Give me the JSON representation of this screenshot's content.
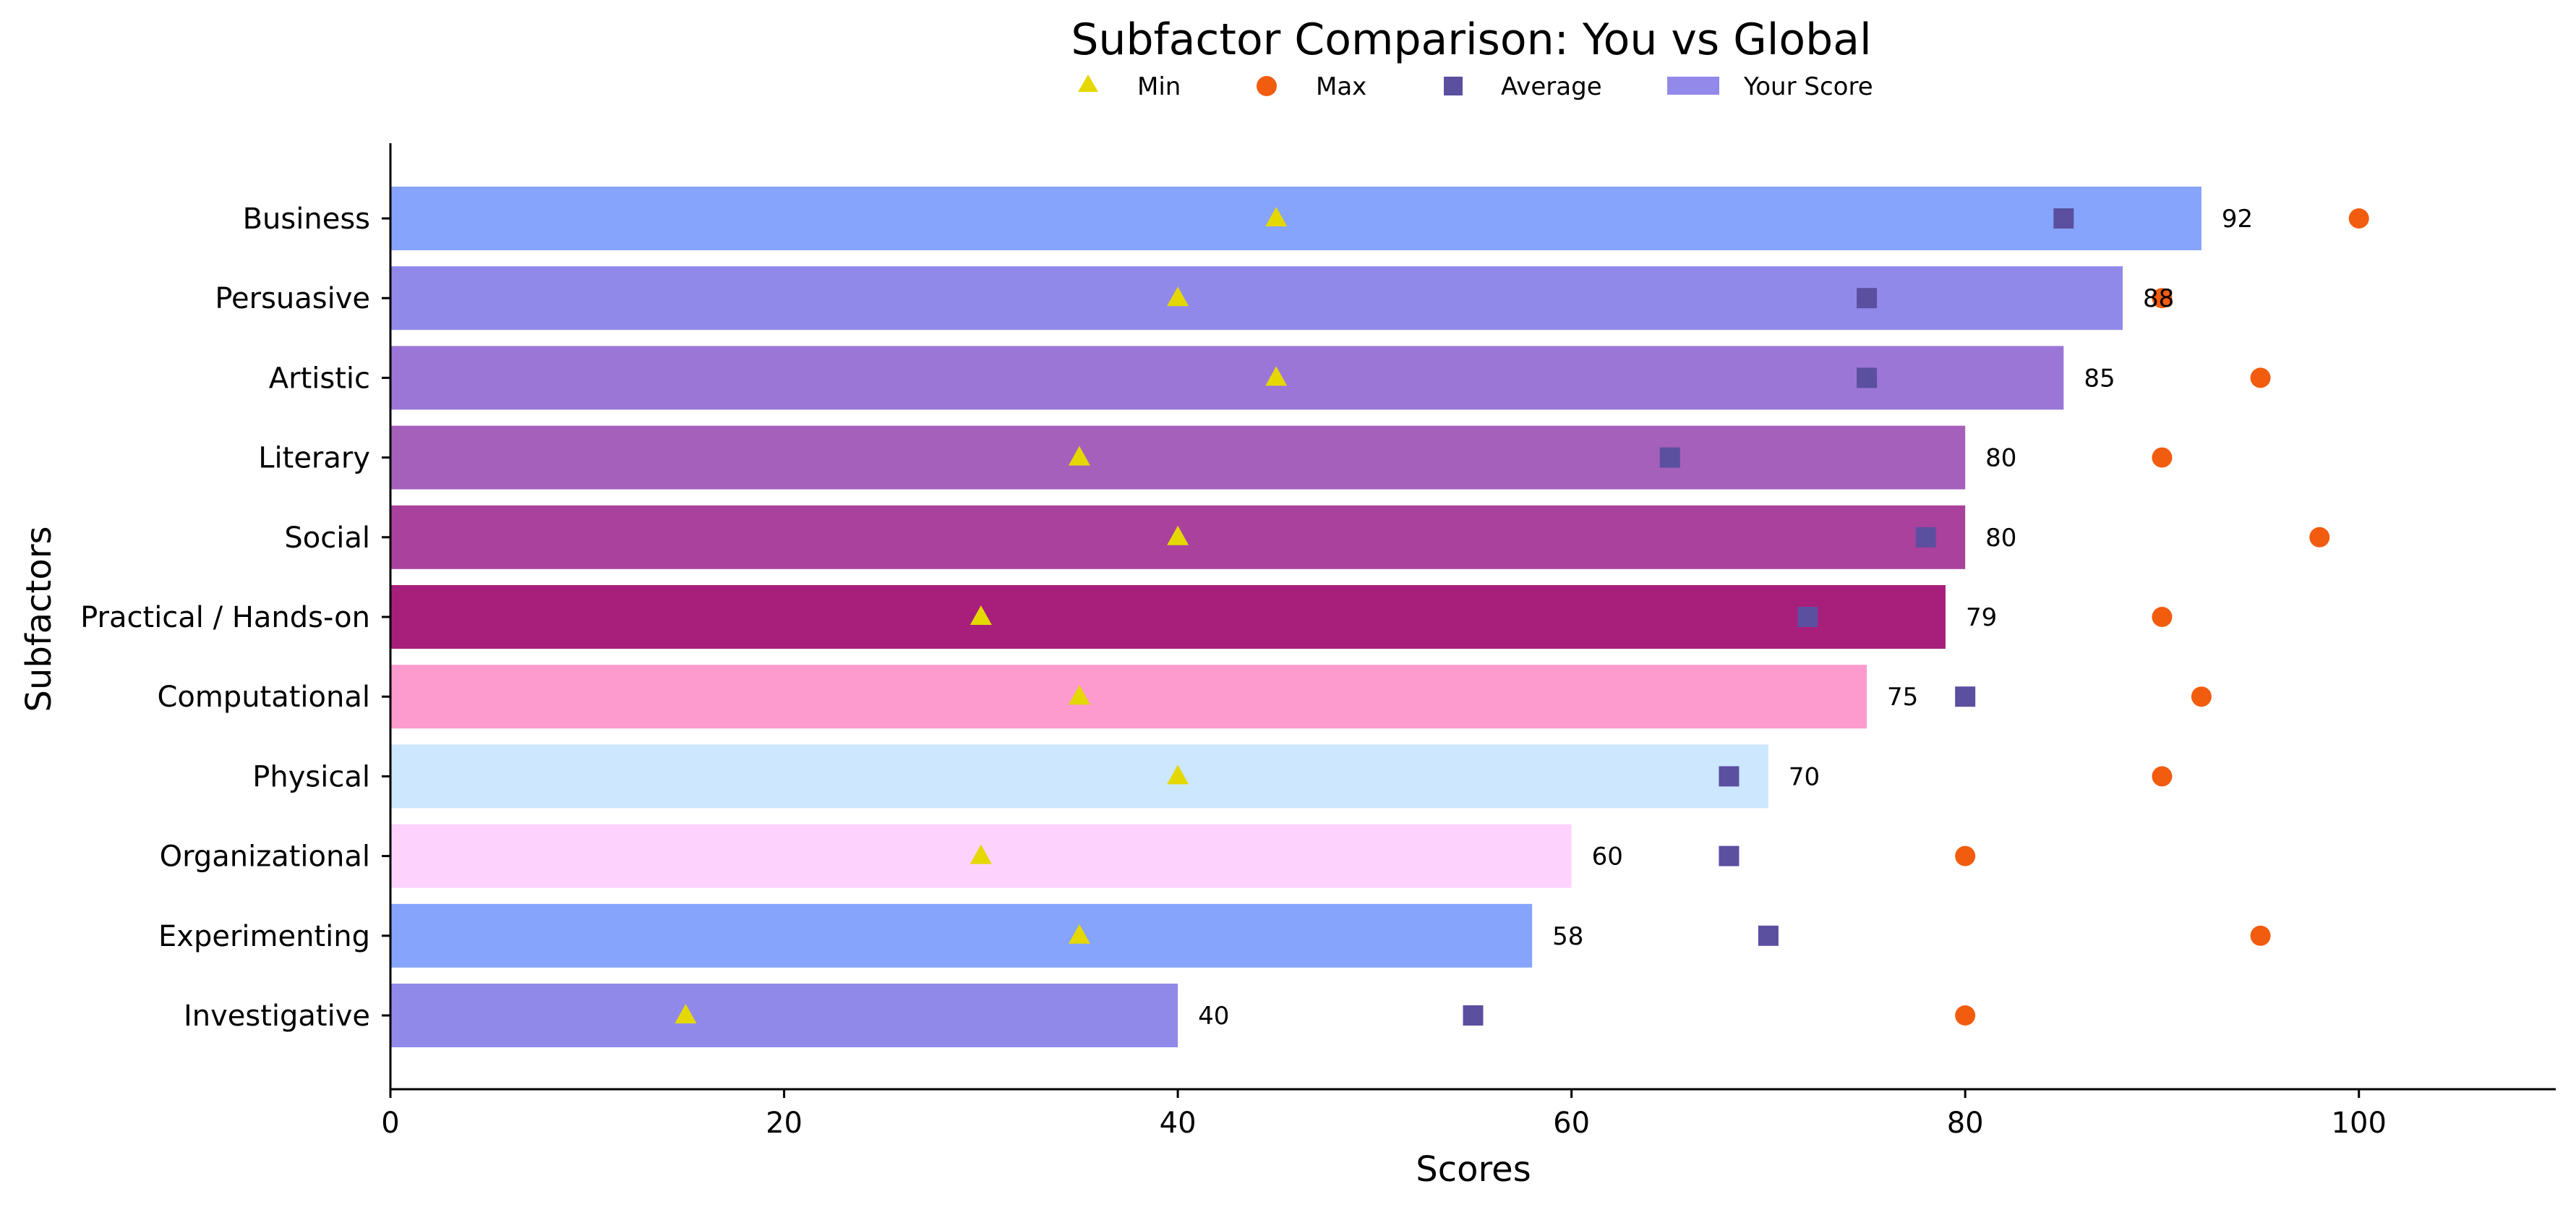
{
  "chart_data": {
    "type": "bar",
    "orientation": "horizontal",
    "title": "Subfactor Comparison: You vs Global",
    "xlabel": "Scores",
    "ylabel": "Subfactors",
    "xlim": [
      0,
      110
    ],
    "xticks": [
      0,
      20,
      40,
      60,
      80,
      100
    ],
    "grid": false,
    "legend_position": "top-center",
    "legend": [
      {
        "label": "Min",
        "marker": "triangle",
        "color": "#e5d800"
      },
      {
        "label": "Max",
        "marker": "circle",
        "color": "#f25c0f"
      },
      {
        "label": "Average",
        "marker": "square",
        "color": "#5b4fa0"
      },
      {
        "label": "Your Score",
        "marker": "bar",
        "color": "#9289ea"
      }
    ],
    "categories": [
      "Business",
      "Persuasive",
      "Artistic",
      "Literary",
      "Social",
      "Practical / Hands-on",
      "Computational",
      "Physical",
      "Organizational",
      "Experimenting",
      "Investigative"
    ],
    "series": [
      {
        "name": "Your Score",
        "values": [
          92,
          88,
          85,
          80,
          80,
          79,
          75,
          70,
          60,
          58,
          40
        ]
      },
      {
        "name": "Min",
        "values": [
          45,
          40,
          45,
          35,
          40,
          30,
          35,
          40,
          30,
          35,
          15
        ]
      },
      {
        "name": "Max",
        "values": [
          100,
          90,
          95,
          90,
          98,
          90,
          92,
          90,
          80,
          95,
          80
        ]
      },
      {
        "name": "Average",
        "values": [
          85,
          75,
          75,
          65,
          78,
          72,
          80,
          68,
          68,
          70,
          55
        ]
      }
    ],
    "bar_colors": [
      "#86a4fb",
      "#9189ea",
      "#9b76d6",
      "#a560bb",
      "#aa419d",
      "#a81e7b",
      "#fd9ace",
      "#cde7fe",
      "#fdd3fd",
      "#86a4fb",
      "#9189ea"
    ]
  }
}
